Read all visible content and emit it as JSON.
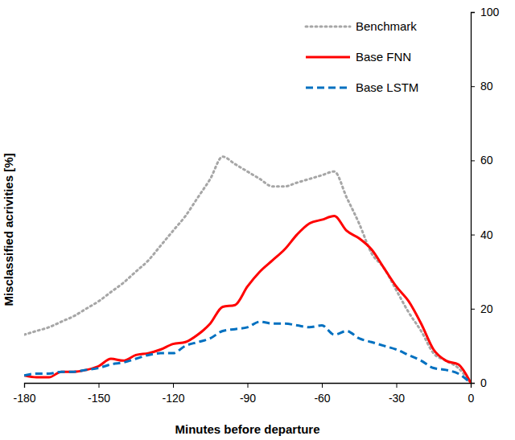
{
  "chart_data": {
    "type": "line",
    "x_label": "Minutes before departure",
    "y_label": "Misclassified  acrivities [%]",
    "x": [
      -180,
      -175,
      -170,
      -165,
      -160,
      -155,
      -150,
      -145,
      -140,
      -135,
      -130,
      -125,
      -120,
      -115,
      -110,
      -105,
      -100,
      -95,
      -90,
      -85,
      -80,
      -75,
      -70,
      -65,
      -60,
      -55,
      -50,
      -45,
      -40,
      -35,
      -30,
      -25,
      -20,
      -15,
      -10,
      -5,
      0
    ],
    "series": [
      {
        "name": "Benchmark",
        "color": "#a6a6a6",
        "line_style": "dotted",
        "values": [
          13,
          14,
          15,
          16.5,
          18,
          20,
          22,
          24.5,
          27,
          30,
          33,
          37,
          41,
          45,
          50,
          55,
          61,
          59,
          57,
          55,
          53,
          53,
          54,
          55,
          56,
          57,
          50,
          43,
          35,
          31,
          25,
          19,
          14,
          8,
          6,
          4,
          0
        ]
      },
      {
        "name": "Base FNN",
        "color": "#ff0000",
        "line_style": "solid",
        "values": [
          2,
          1.5,
          1.5,
          3,
          3,
          3.5,
          4.5,
          6.5,
          6,
          7.5,
          8,
          9,
          10.5,
          11,
          13,
          16,
          20.5,
          21,
          26,
          30,
          33,
          36,
          40,
          43,
          44,
          45,
          41,
          39,
          36,
          31,
          26,
          22,
          16,
          9,
          6,
          5,
          0
        ]
      },
      {
        "name": "Base LSTM",
        "color": "#0070c0",
        "line_style": "dashed",
        "values": [
          2,
          2.5,
          2.5,
          3,
          3,
          3.5,
          4,
          5,
          5.5,
          6.5,
          7.5,
          8,
          8,
          10,
          11,
          12,
          14,
          14.5,
          15,
          16.5,
          16,
          16,
          15.5,
          15,
          15.5,
          13,
          14,
          12,
          11,
          10,
          9,
          7.5,
          6,
          4,
          3.5,
          2.5,
          0
        ]
      }
    ],
    "xlim": [
      -180,
      0
    ],
    "xticks": [
      -180,
      -150,
      -120,
      -90,
      -60,
      -30,
      0
    ],
    "ylim": [
      0,
      100
    ],
    "yticks": [
      0,
      20,
      40,
      60,
      80,
      100
    ],
    "grid": false,
    "legend": "top-right"
  }
}
